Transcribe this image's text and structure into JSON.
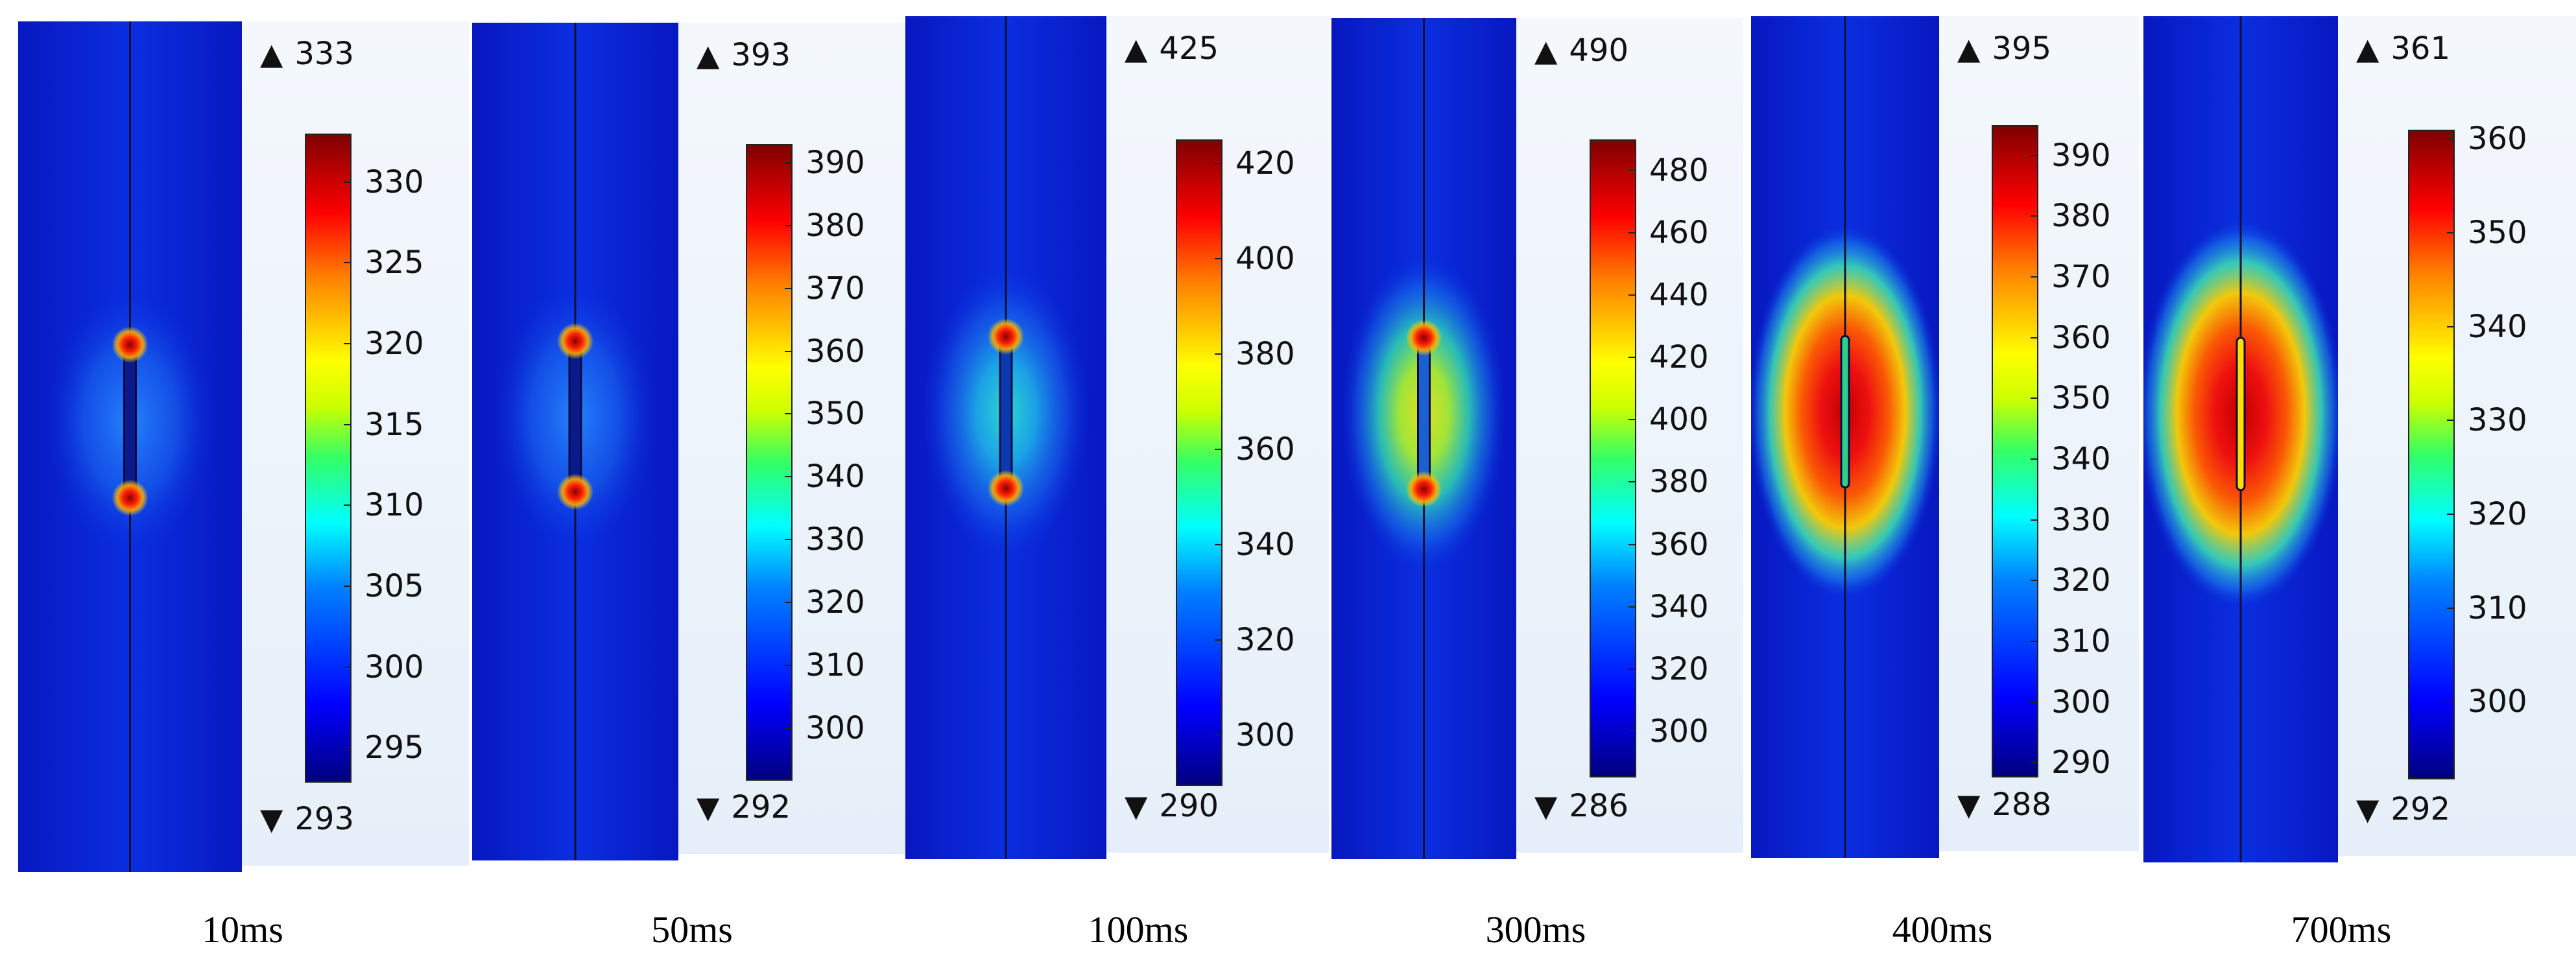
{
  "panels": [
    {
      "time": "10ms",
      "max": "333",
      "min": "293",
      "ticks": [
        330,
        325,
        320,
        315,
        310,
        305,
        300,
        295
      ],
      "range": [
        293,
        333
      ],
      "hot_intensity": 0.18,
      "tip_hot": true,
      "rod_color": "#0a1a8a"
    },
    {
      "time": "50ms",
      "max": "393",
      "min": "292",
      "ticks": [
        390,
        380,
        370,
        360,
        350,
        340,
        330,
        320,
        310,
        300
      ],
      "range": [
        292,
        393
      ],
      "hot_intensity": 0.25,
      "tip_hot": true,
      "rod_color": "#0a1a8a"
    },
    {
      "time": "100ms",
      "max": "425",
      "min": "290",
      "ticks": [
        420,
        400,
        380,
        360,
        340,
        320,
        300
      ],
      "range": [
        290,
        425
      ],
      "hot_intensity": 0.38,
      "tip_hot": true,
      "rod_color": "#0a3ab0"
    },
    {
      "time": "300ms",
      "max": "490",
      "min": "286",
      "ticks": [
        480,
        460,
        440,
        420,
        400,
        380,
        360,
        340,
        320,
        300
      ],
      "range": [
        286,
        490
      ],
      "hot_intensity": 0.55,
      "tip_hot": true,
      "rod_color": "#1a60d0"
    },
    {
      "time": "400ms",
      "max": "395",
      "min": "288",
      "ticks": [
        390,
        380,
        370,
        360,
        350,
        340,
        330,
        320,
        310,
        300,
        290
      ],
      "range": [
        288,
        395
      ],
      "hot_intensity": 0.92,
      "tip_hot": false,
      "rod_color": "#2ad08a"
    },
    {
      "time": "700ms",
      "max": "361",
      "min": "292",
      "ticks": [
        360,
        350,
        340,
        330,
        320,
        310,
        300
      ],
      "range": [
        292,
        361
      ],
      "hot_intensity": 1.0,
      "tip_hot": false,
      "rod_color": "#ffdd00"
    }
  ],
  "colors": {
    "background_blue": "#0a2ad8",
    "hot_core": "#c80000",
    "legend_bg": "#eef4fb"
  }
}
